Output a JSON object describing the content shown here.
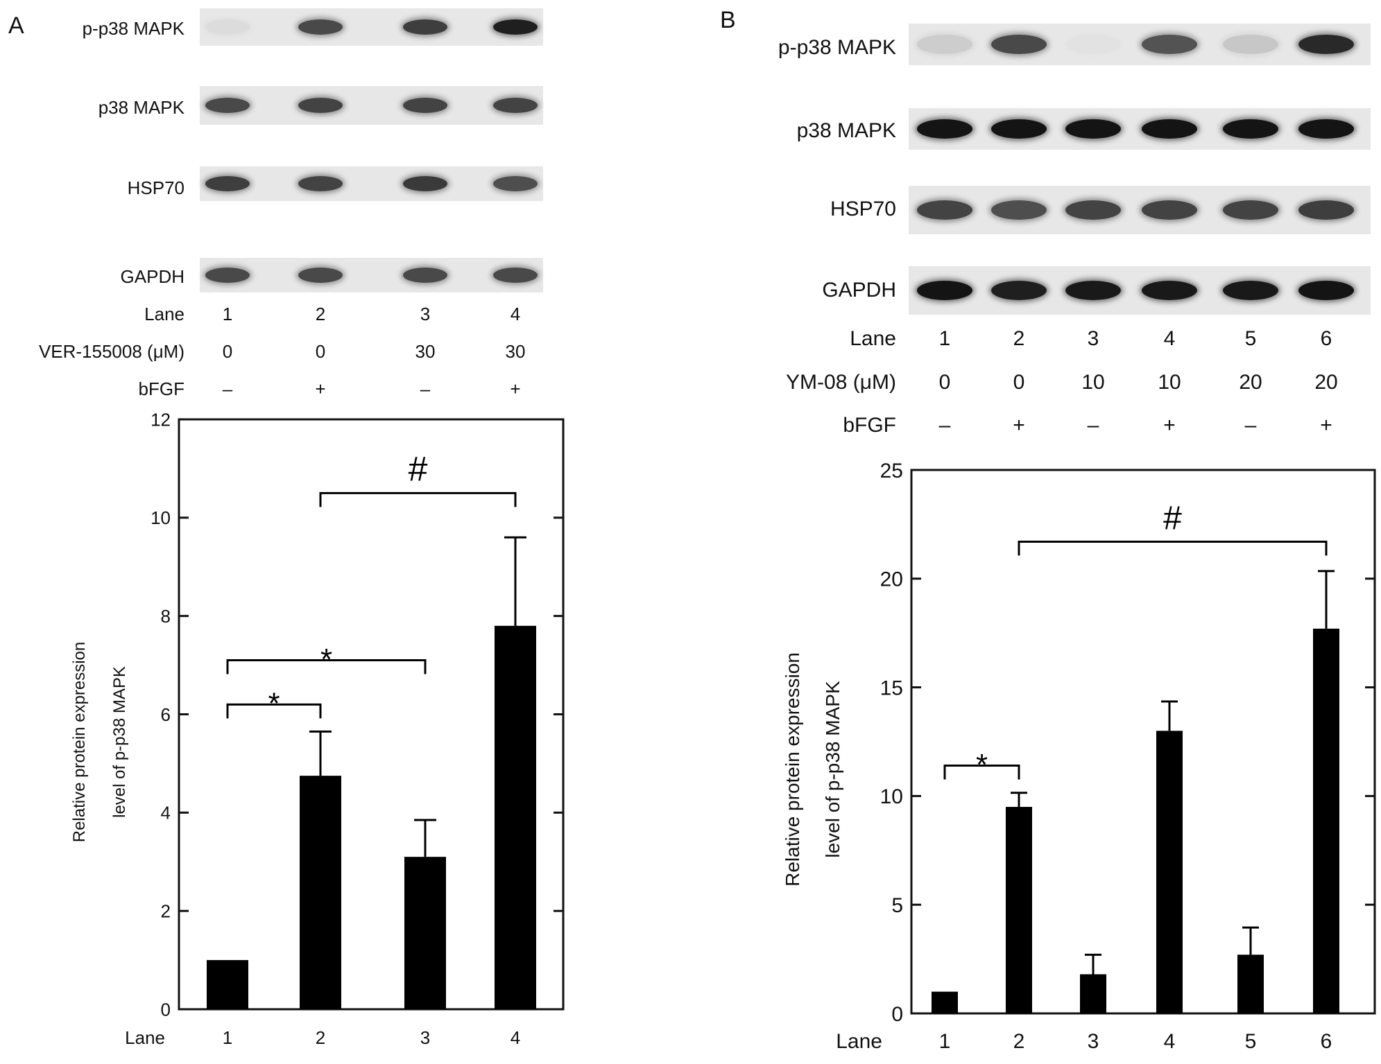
{
  "panelA": {
    "letter": "A",
    "blot_rows": [
      "p-p38 MAPK",
      "p38 MAPK",
      "HSP70",
      "GAPDH"
    ],
    "band_intensity": [
      [
        0.05,
        0.75,
        0.8,
        0.95
      ],
      [
        0.75,
        0.78,
        0.78,
        0.78
      ],
      [
        0.8,
        0.78,
        0.82,
        0.72
      ],
      [
        0.75,
        0.75,
        0.75,
        0.75
      ]
    ],
    "table": {
      "lane_label": "Lane",
      "lanes": [
        "1",
        "2",
        "3",
        "4"
      ],
      "treatment_label": "VER-155008 (μM)",
      "treatment_values": [
        "0",
        "0",
        "30",
        "30"
      ],
      "bfgf_label": "bFGF",
      "bfgf_values": [
        "–",
        "+",
        "–",
        "+"
      ]
    }
  },
  "panelB": {
    "letter": "B",
    "blot_rows": [
      "p-p38 MAPK",
      "p38 MAPK",
      "HSP70",
      "GAPDH"
    ],
    "band_intensity": [
      [
        0.12,
        0.75,
        0.02,
        0.7,
        0.15,
        0.9
      ],
      [
        1.0,
        1.0,
        1.0,
        1.0,
        1.0,
        1.0
      ],
      [
        0.78,
        0.72,
        0.78,
        0.78,
        0.78,
        0.8
      ],
      [
        1.0,
        0.95,
        0.98,
        0.98,
        0.98,
        1.0
      ]
    ],
    "table": {
      "lane_label": "Lane",
      "lanes": [
        "1",
        "2",
        "3",
        "4",
        "5",
        "6"
      ],
      "treatment_label": "YM-08 (μM)",
      "treatment_values": [
        "0",
        "0",
        "10",
        "10",
        "20",
        "20"
      ],
      "bfgf_label": "bFGF",
      "bfgf_values": [
        "–",
        "+",
        "–",
        "+",
        "–",
        "+"
      ]
    }
  },
  "chart_data": [
    {
      "type": "bar",
      "panel": "A",
      "categories": [
        "1",
        "2",
        "3",
        "4"
      ],
      "values": [
        1.0,
        4.75,
        3.1,
        7.8
      ],
      "errors": [
        0,
        0.9,
        0.75,
        1.8
      ],
      "xlabel": "Lane",
      "ylabel_lines": [
        "Relative protein expression",
        "level of p-p38 MAPK"
      ],
      "ylim": [
        0,
        12
      ],
      "yticks": [
        0,
        2,
        4,
        6,
        8,
        10,
        12
      ],
      "significance": [
        {
          "from": 0,
          "to": 1,
          "label": "*",
          "y": 6.2
        },
        {
          "from": 0,
          "to": 2,
          "label": "*",
          "y": 7.1
        },
        {
          "from": 1,
          "to": 3,
          "label": "#",
          "y": 10.5
        }
      ]
    },
    {
      "type": "bar",
      "panel": "B",
      "categories": [
        "1",
        "2",
        "3",
        "4",
        "5",
        "6"
      ],
      "values": [
        1.0,
        9.5,
        1.8,
        13.0,
        2.7,
        17.7
      ],
      "errors": [
        0,
        0.65,
        0.9,
        1.35,
        1.25,
        2.65
      ],
      "xlabel": "Lane",
      "ylabel_lines": [
        "Relative protein expression",
        "level of p-p38 MAPK"
      ],
      "ylim": [
        0,
        25
      ],
      "yticks": [
        0,
        5,
        10,
        15,
        20,
        25
      ],
      "significance": [
        {
          "from": 0,
          "to": 1,
          "label": "*",
          "y": 11.4
        },
        {
          "from": 1,
          "to": 5,
          "label": "#",
          "y": 21.7
        }
      ]
    }
  ]
}
